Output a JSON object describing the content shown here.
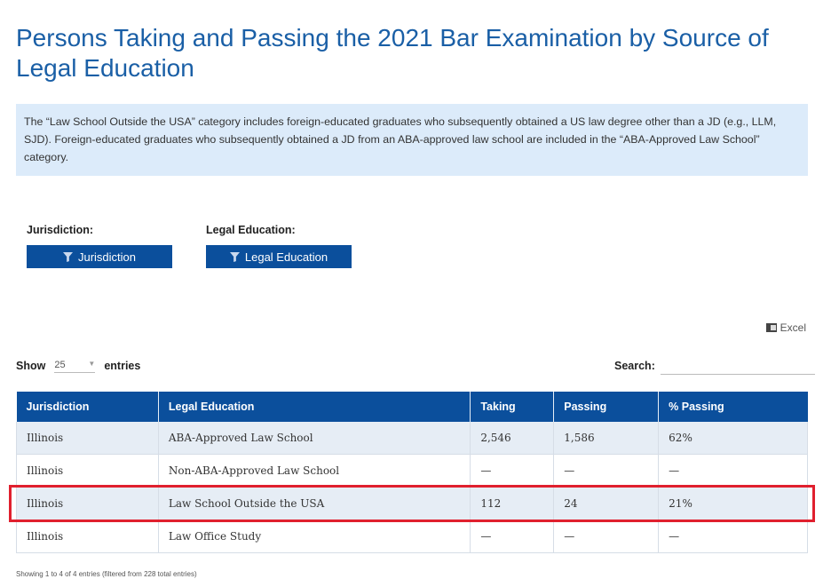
{
  "page": {
    "title": "Persons Taking and Passing the 2021 Bar Examination by Source of Legal Education",
    "note": "The “Law School Outside the USA” category includes foreign-educated graduates who subsequently obtained a US law degree other than a JD (e.g., LLM, SJD). Foreign-educated graduates who subsequently obtained a JD from an ABA-approved law school are included in the “ABA-Approved Law School” category."
  },
  "filters": {
    "jurisdiction_label": "Jurisdiction:",
    "jurisdiction_button": "Jurisdiction",
    "education_label": "Legal Education:",
    "education_button": "Legal Education"
  },
  "toolbar": {
    "excel_label": "Excel",
    "show_label": "Show",
    "entries_value": "25",
    "entries_label": "entries",
    "search_label": "Search:",
    "search_value": ""
  },
  "table": {
    "headers": [
      "Jurisdiction",
      "Legal Education",
      "Taking",
      "Passing",
      "% Passing"
    ],
    "rows": [
      [
        "Illinois",
        "ABA-Approved Law School",
        "2,546",
        "1,586",
        "62%"
      ],
      [
        "Illinois",
        "Non-ABA-Approved Law School",
        "—",
        "—",
        "—"
      ],
      [
        "Illinois",
        "Law School Outside the USA",
        "112",
        "24",
        "21%"
      ],
      [
        "Illinois",
        "Law Office Study",
        "—",
        "—",
        "—"
      ]
    ]
  },
  "footer": {
    "info": "Showing 1 to 4 of 4 entries (filtered from 228 total entries)"
  },
  "colors": {
    "accent": "#0b4f9c",
    "title": "#1a5fa6",
    "note_bg": "#dcebfa",
    "highlight": "#e0202e"
  }
}
